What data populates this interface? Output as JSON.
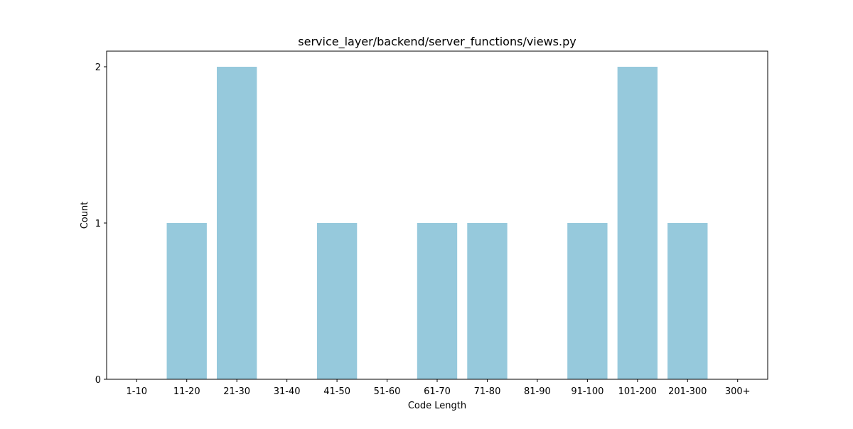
{
  "chart_data": {
    "type": "bar",
    "title": "service_layer/backend/server_functions/views.py",
    "xlabel": "Code Length",
    "ylabel": "Count",
    "categories": [
      "1-10",
      "11-20",
      "21-30",
      "31-40",
      "41-50",
      "51-60",
      "61-70",
      "71-80",
      "81-90",
      "91-100",
      "101-200",
      "201-300",
      "300+"
    ],
    "values": [
      0,
      1,
      2,
      0,
      1,
      0,
      1,
      1,
      0,
      1,
      2,
      1,
      0
    ],
    "ylim": [
      0,
      2.1
    ],
    "yticks": [
      0,
      1,
      2
    ],
    "bar_color": "#96c9dc",
    "grid": false,
    "legend": "none"
  }
}
